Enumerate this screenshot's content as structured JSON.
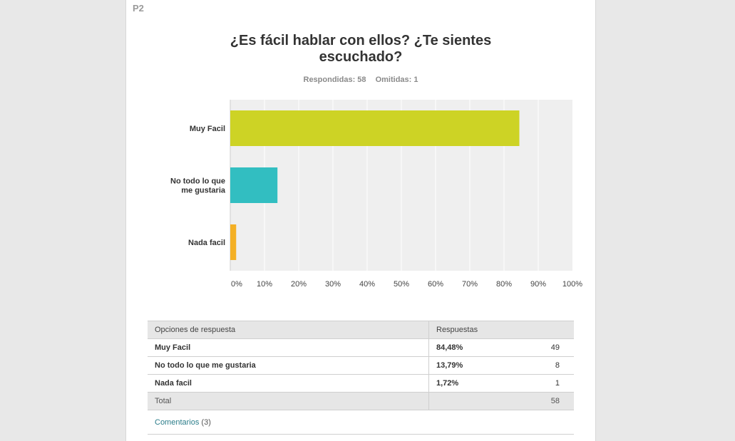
{
  "question": {
    "number": "P2",
    "title": "¿Es fácil hablar con ellos? ¿Te sientes escuchado?",
    "answered": "Respondidas: 58",
    "skipped": "Omitidas: 1"
  },
  "chart_data": {
    "type": "bar",
    "orientation": "horizontal",
    "categories": [
      "Muy Facil",
      "No todo lo que me gustaria",
      "Nada facil"
    ],
    "values": [
      84.48,
      13.79,
      1.72
    ],
    "colors": [
      "#cdd325",
      "#32bec1",
      "#f4b025"
    ],
    "xlim": [
      0,
      100
    ],
    "xticks": [
      "0%",
      "10%",
      "20%",
      "30%",
      "40%",
      "50%",
      "60%",
      "70%",
      "80%",
      "90%",
      "100%"
    ],
    "grid": true,
    "background": "#efefef"
  },
  "table": {
    "headers": [
      "Opciones de respuesta",
      "Respuestas"
    ],
    "rows": [
      {
        "label": "Muy Facil",
        "percent": "84,48%",
        "count": "49"
      },
      {
        "label": "No todo lo que me gustaria",
        "percent": "13,79%",
        "count": "8"
      },
      {
        "label": "Nada facil",
        "percent": "1,72%",
        "count": "1"
      }
    ],
    "total_label": "Total",
    "total_count": "58"
  },
  "comments": {
    "label": "Comentarios",
    "count": "(3)"
  }
}
